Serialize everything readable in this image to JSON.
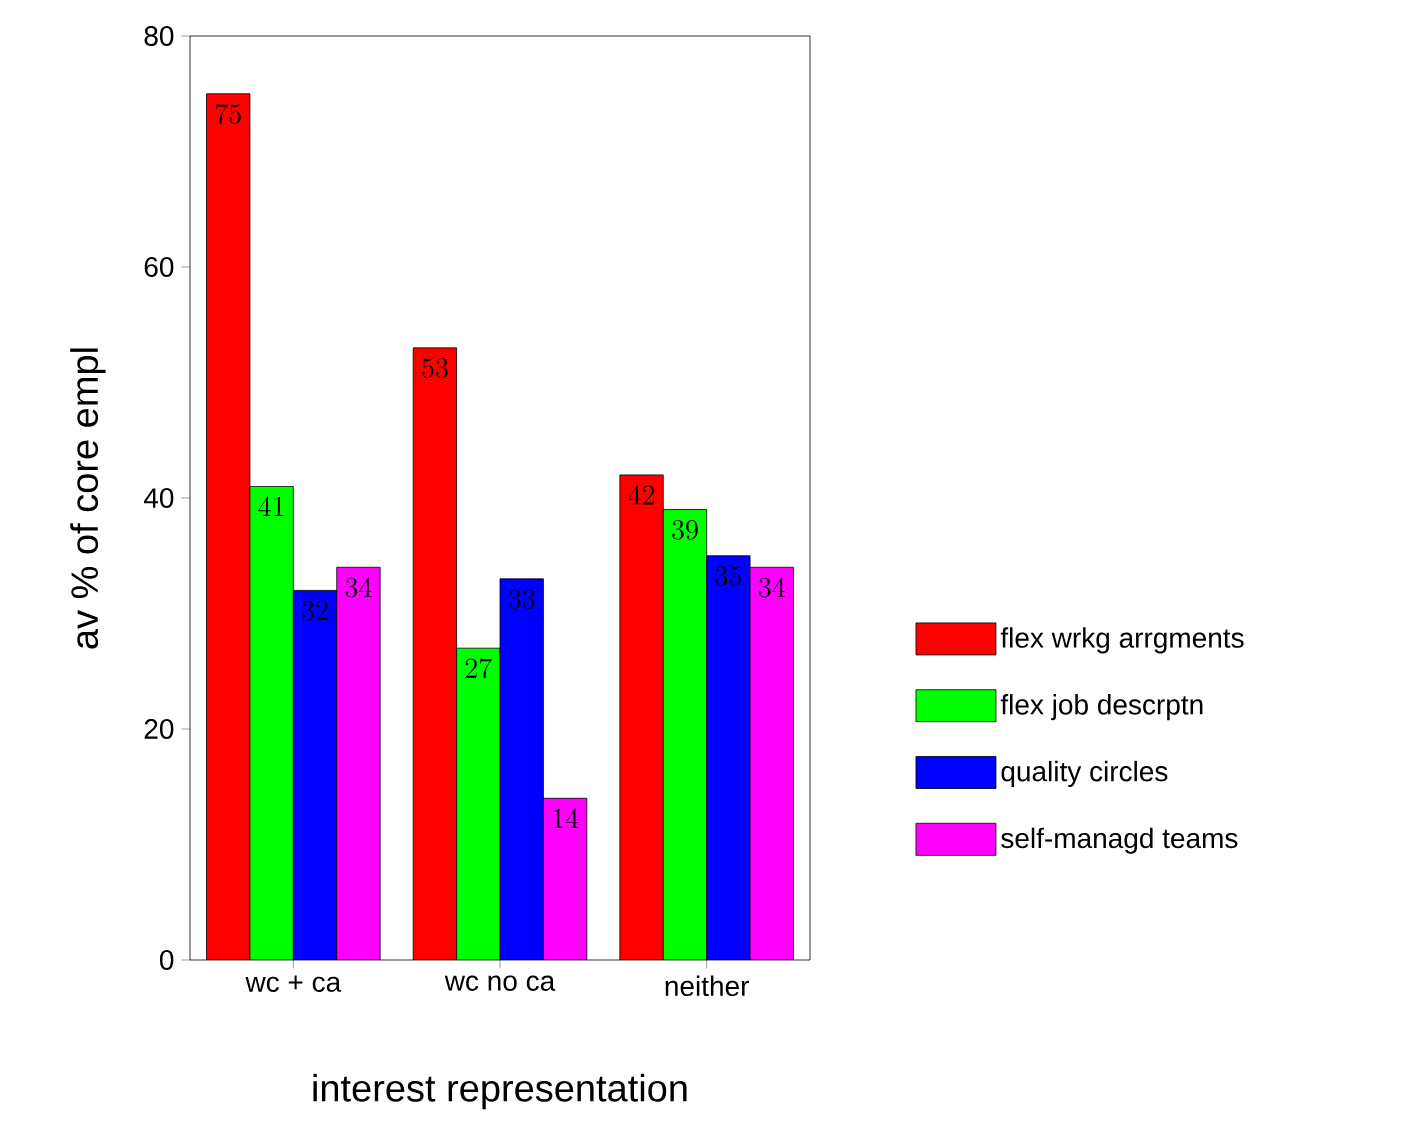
{
  "chart_data": {
    "type": "bar",
    "xlabel": "interest representation",
    "ylabel": "av % of core empl",
    "categories": [
      "wc + ca",
      "wc no ca",
      "neither"
    ],
    "series": [
      {
        "name": "flex wrkg arrgments",
        "color": "#ff0000",
        "values": [
          75,
          53,
          42
        ]
      },
      {
        "name": "flex job descrptn",
        "color": "#00ff00",
        "values": [
          41,
          27,
          39
        ]
      },
      {
        "name": "quality circles",
        "color": "#0000ff",
        "values": [
          32,
          33,
          35
        ]
      },
      {
        "name": "self-managd teams",
        "color": "#ff00ff",
        "values": [
          34,
          14,
          34
        ]
      }
    ],
    "ylim": [
      0,
      80
    ],
    "yticks": [
      0,
      20,
      40,
      60,
      80
    ],
    "data_labels": true,
    "grid": false,
    "legend": "right"
  }
}
